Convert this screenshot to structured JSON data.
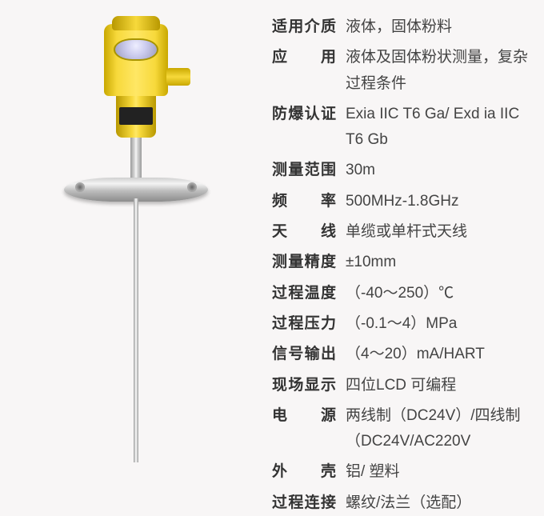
{
  "specs": [
    {
      "label": "适用介质",
      "value": "液体，固体粉料"
    },
    {
      "label": "应　　用",
      "value": "液体及固体粉状测量，复杂过程条件"
    },
    {
      "label": "防爆认证",
      "value": "Exia IIC T6 Ga/ Exd ia IIC T6 Gb"
    },
    {
      "label": "测量范围",
      "value": "30m"
    },
    {
      "label": "频　　率",
      "value": "500MHz-1.8GHz"
    },
    {
      "label": "天　　线",
      "value": "单缆或单杆式天线"
    },
    {
      "label": "测量精度",
      "value": "±10mm"
    },
    {
      "label": "过程温度",
      "value": "（-40～250）℃"
    },
    {
      "label": "过程压力",
      "value": "（-0.1～4）MPa"
    },
    {
      "label": "信号输出",
      "value": "（4～20）mA/HART"
    },
    {
      "label": "现场显示",
      "value": "四位LCD 可编程"
    },
    {
      "label": "电　　源",
      "value": "两线制（DC24V）/四线制（DC24V/AC220V"
    },
    {
      "label": "外　　壳",
      "value": "铝/ 塑料"
    },
    {
      "label": "过程连接",
      "value": "螺纹/法兰（选配）"
    }
  ],
  "colors": {
    "background": "#f8f6f6",
    "label_text": "#333333",
    "value_text": "#444444",
    "device_yellow": "#f7d93b",
    "device_metal": "#cfcfcf"
  },
  "typography": {
    "font_family": "Microsoft YaHei",
    "label_fontsize": 19,
    "label_weight": 700,
    "value_fontsize": 19,
    "value_weight": 400
  }
}
